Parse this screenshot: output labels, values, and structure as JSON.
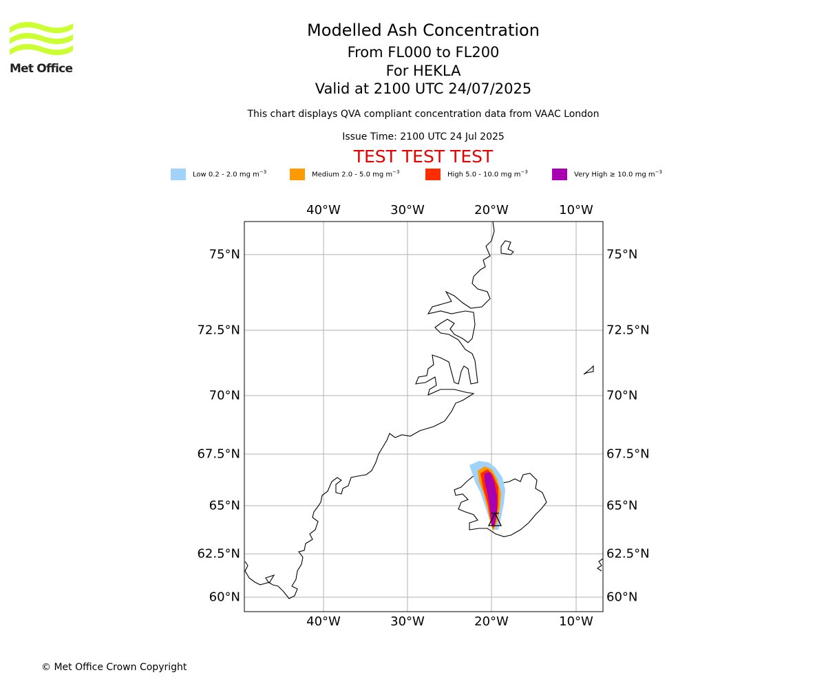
{
  "logo": {
    "text": "Met Office",
    "color": "#ccff33",
    "icon": "met-office-wave-logo"
  },
  "header": {
    "title": "Modelled Ash Concentration",
    "levels": "From FL000 to FL200",
    "volcano": "For HEKLA",
    "valid": "Valid at 2100 UTC 24/07/2025",
    "description": "This chart displays QVA compliant concentration data from VAAC London",
    "issue_time": "Issue Time: 2100 UTC 24 Jul 2025",
    "test_banner": "TEST TEST TEST",
    "test_banner_color": "#e60000"
  },
  "legend": [
    {
      "label": "Low 0.2 - 2.0 mg m",
      "unit_sup": "−3",
      "color": "#a0d2fa"
    },
    {
      "label": "Medium 2.0 - 5.0 mg m",
      "unit_sup": "−3",
      "color": "#ff9a00"
    },
    {
      "label": "High 5.0 - 10.0 mg m",
      "unit_sup": "−3",
      "color": "#ff2d00"
    },
    {
      "label": "Very High ≥ 10.0 mg m",
      "unit_sup": "−3",
      "color": "#a800b0"
    }
  ],
  "map": {
    "lon_labels": [
      "40°W",
      "30°W",
      "20°W",
      "10°W"
    ],
    "lat_labels": [
      "75°N",
      "72.5°N",
      "70°N",
      "67.5°N",
      "65°N",
      "62.5°N",
      "60°N"
    ],
    "gridline_color": "#b0b0b0",
    "volcano_marker": "volcano-triangle-icon"
  },
  "footer": {
    "copyright": "© Met Office Crown Copyright"
  }
}
